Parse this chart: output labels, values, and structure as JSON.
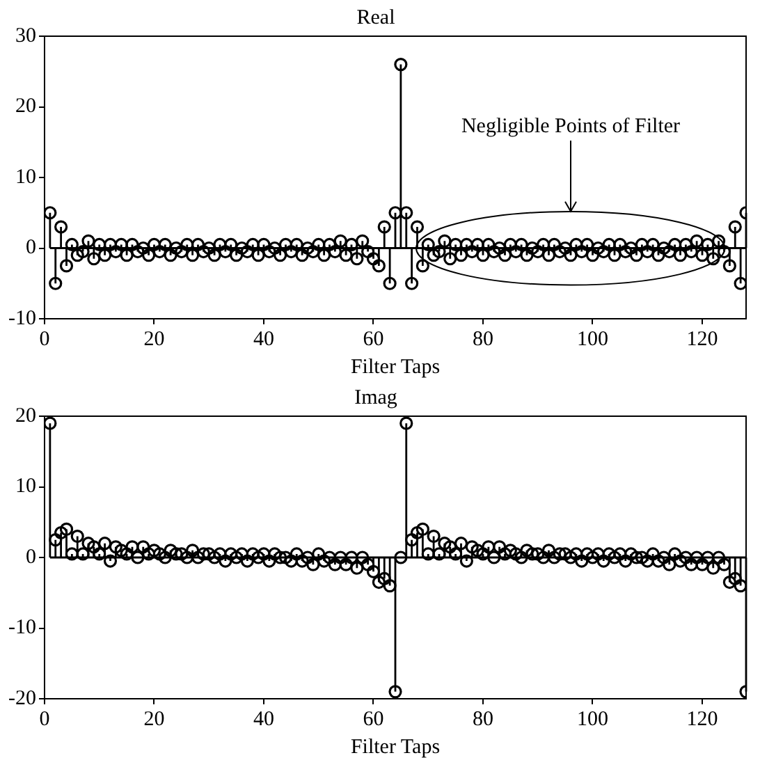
{
  "chart_data": [
    {
      "type": "lollipop",
      "title": "Real",
      "xlabel": "Filter Taps",
      "color": "#000000",
      "marker": "circle",
      "xlim": [
        0,
        128
      ],
      "xticks": [
        0,
        20,
        40,
        60,
        80,
        100,
        120
      ],
      "ylim": [
        -10,
        30
      ],
      "yticks": [
        -10,
        0,
        10,
        20,
        30
      ],
      "annotations": [
        "Negligible Points of Filter"
      ],
      "x": [
        1,
        2,
        3,
        4,
        5,
        6,
        7,
        8,
        9,
        10,
        11,
        12,
        13,
        14,
        15,
        16,
        17,
        18,
        19,
        20,
        21,
        22,
        23,
        24,
        25,
        26,
        27,
        28,
        29,
        30,
        31,
        32,
        33,
        34,
        35,
        36,
        37,
        38,
        39,
        40,
        41,
        42,
        43,
        44,
        45,
        46,
        47,
        48,
        49,
        50,
        51,
        52,
        53,
        54,
        55,
        56,
        57,
        58,
        59,
        60,
        61,
        62,
        63,
        64,
        65,
        66,
        67,
        68,
        69,
        70,
        71,
        72,
        73,
        74,
        75,
        76,
        77,
        78,
        79,
        80,
        81,
        82,
        83,
        84,
        85,
        86,
        87,
        88,
        89,
        90,
        91,
        92,
        93,
        94,
        95,
        96,
        97,
        98,
        99,
        100,
        101,
        102,
        103,
        104,
        105,
        106,
        107,
        108,
        109,
        110,
        111,
        112,
        113,
        114,
        115,
        116,
        117,
        118,
        119,
        120,
        121,
        122,
        123,
        124,
        125,
        126,
        127,
        128
      ],
      "values": [
        5,
        -5,
        3,
        -2.5,
        0.5,
        -1,
        -0.5,
        1,
        -1.5,
        0.5,
        -1,
        0.5,
        -0.5,
        0.5,
        -1,
        0.5,
        -0.5,
        0,
        -1,
        0.5,
        -0.5,
        0.5,
        -1,
        0,
        -0.5,
        0.5,
        -1,
        0.5,
        -0.5,
        0,
        -1,
        0.5,
        -0.5,
        0.5,
        -1,
        0,
        -0.5,
        0.5,
        -1,
        0.5,
        -0.5,
        0,
        -1,
        0.5,
        -0.5,
        0.5,
        -1,
        0,
        -0.5,
        0.5,
        -1,
        0.5,
        -0.5,
        1,
        -1,
        0.5,
        -1.5,
        1,
        -0.5,
        -1.5,
        -2.5,
        3,
        -5,
        5,
        26,
        5,
        -5,
        3,
        -2.5,
        0.5,
        -1,
        -0.5,
        1,
        -1.5,
        0.5,
        -1,
        0.5,
        -0.5,
        0.5,
        -1,
        0.5,
        -0.5,
        0,
        -1,
        0.5,
        -0.5,
        0.5,
        -1,
        0,
        -0.5,
        0.5,
        -1,
        0.5,
        -0.5,
        0,
        -1,
        0.5,
        -0.5,
        0.5,
        -1,
        0,
        -0.5,
        0.5,
        -1,
        0.5,
        -0.5,
        0,
        -1,
        0.5,
        -0.5,
        0.5,
        -1,
        0,
        -0.5,
        0.5,
        -1,
        0.5,
        -0.5,
        1,
        -1,
        0.5,
        -1.5,
        1,
        -0.5,
        -2.5,
        3,
        -5,
        5
      ]
    },
    {
      "type": "lollipop",
      "title": "Imag",
      "xlabel": "Filter Taps",
      "color": "#000000",
      "marker": "circle",
      "xlim": [
        0,
        128
      ],
      "xticks": [
        0,
        20,
        40,
        60,
        80,
        100,
        120
      ],
      "ylim": [
        -20,
        20
      ],
      "yticks": [
        -20,
        -10,
        0,
        10,
        20
      ],
      "x": [
        1,
        2,
        3,
        4,
        5,
        6,
        7,
        8,
        9,
        10,
        11,
        12,
        13,
        14,
        15,
        16,
        17,
        18,
        19,
        20,
        21,
        22,
        23,
        24,
        25,
        26,
        27,
        28,
        29,
        30,
        31,
        32,
        33,
        34,
        35,
        36,
        37,
        38,
        39,
        40,
        41,
        42,
        43,
        44,
        45,
        46,
        47,
        48,
        49,
        50,
        51,
        52,
        53,
        54,
        55,
        56,
        57,
        58,
        59,
        60,
        61,
        62,
        63,
        64,
        65,
        66,
        67,
        68,
        69,
        70,
        71,
        72,
        73,
        74,
        75,
        76,
        77,
        78,
        79,
        80,
        81,
        82,
        83,
        84,
        85,
        86,
        87,
        88,
        89,
        90,
        91,
        92,
        93,
        94,
        95,
        96,
        97,
        98,
        99,
        100,
        101,
        102,
        103,
        104,
        105,
        106,
        107,
        108,
        109,
        110,
        111,
        112,
        113,
        114,
        115,
        116,
        117,
        118,
        119,
        120,
        121,
        122,
        123,
        124,
        125,
        126,
        127,
        128
      ],
      "values": [
        19,
        2.5,
        3.5,
        4,
        0.5,
        3,
        0.5,
        2,
        1.5,
        0.5,
        2,
        -0.5,
        1.5,
        1,
        0.5,
        1.5,
        0,
        1.5,
        0.5,
        1,
        0.5,
        0,
        1,
        0.5,
        0.5,
        0,
        1,
        0,
        0.5,
        0.5,
        0,
        0.5,
        -0.5,
        0.5,
        0,
        0.5,
        -0.5,
        0.5,
        0,
        0.5,
        -0.5,
        0.5,
        0,
        0,
        -0.5,
        0.5,
        -0.5,
        0,
        -1,
        0.5,
        -0.5,
        0,
        -1,
        0,
        -1,
        0,
        -1.5,
        0,
        -1,
        -2,
        -3.5,
        -3,
        -4,
        -19,
        0,
        19,
        2.5,
        3.5,
        4,
        0.5,
        3,
        0.5,
        2,
        1.5,
        0.5,
        2,
        -0.5,
        1.5,
        1,
        0.5,
        1.5,
        0,
        1.5,
        0.5,
        1,
        0.5,
        0,
        1,
        0.5,
        0.5,
        0,
        1,
        0,
        0.5,
        0.5,
        0,
        0.5,
        -0.5,
        0.5,
        0,
        0.5,
        -0.5,
        0.5,
        0,
        0.5,
        -0.5,
        0.5,
        0,
        0,
        -0.5,
        0.5,
        -0.5,
        0,
        -1,
        0.5,
        -0.5,
        0,
        -1,
        0,
        -1,
        0,
        -1.5,
        0,
        -1,
        -3.5,
        -3,
        -4,
        -19
      ]
    }
  ]
}
